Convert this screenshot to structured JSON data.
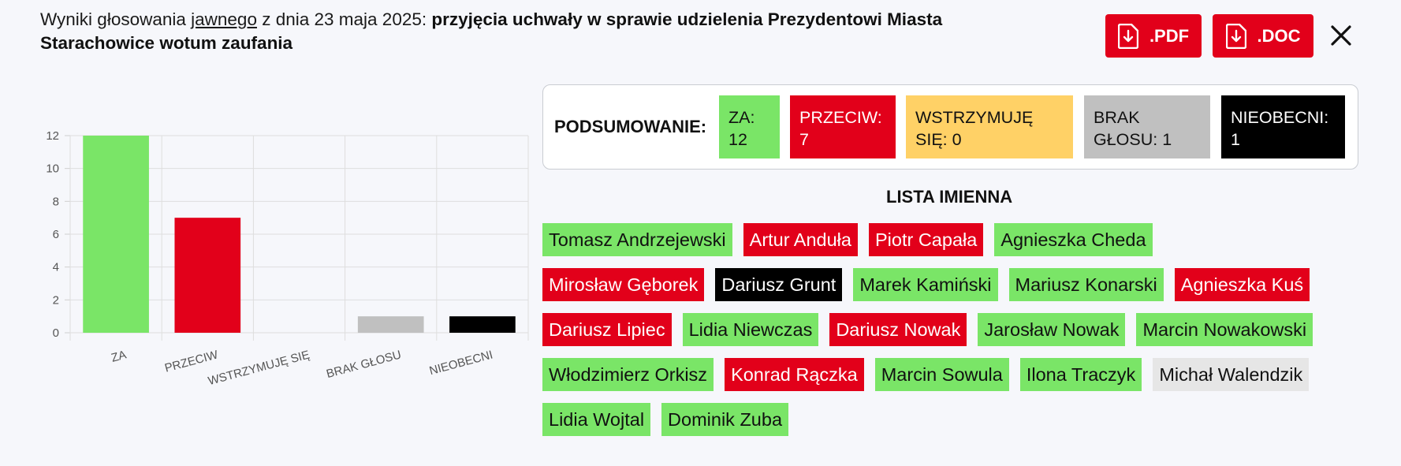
{
  "header": {
    "prefix": "Wyniki głosowania ",
    "vote_type": "jawnego",
    "date_text": " z dnia 23 maja 2025: ",
    "subject": "przyjęcia uchwały w sprawie udzielenia Prezydentowi Miasta Starachowice wotum zaufania"
  },
  "buttons": {
    "pdf_label": ".PDF",
    "doc_label": ".DOC"
  },
  "colors": {
    "za": "#7ae567",
    "przeciw": "#e2001a",
    "wstrzymuje": "#ffd166",
    "brak": "#c0c0c0",
    "nieobecni": "#000000",
    "accent": "#e2001a"
  },
  "chart_data": {
    "type": "bar",
    "categories": [
      "ZA",
      "PRZECIW",
      "WSTRZYMUJĘ SIĘ",
      "BRAK GŁOSU",
      "NIEOBECNI"
    ],
    "values": [
      12,
      7,
      0,
      1,
      1
    ],
    "colors": [
      "#7ae567",
      "#e2001a",
      "#ffd166",
      "#c0c0c0",
      "#000000"
    ],
    "ylim": [
      0,
      12
    ],
    "yticks": [
      0,
      2,
      4,
      6,
      8,
      10,
      12
    ],
    "grid": true,
    "title": "",
    "xlabel": "",
    "ylabel": ""
  },
  "summary": {
    "label": "PODSUMOWANIE:",
    "za": {
      "label": "ZA:",
      "value": "12"
    },
    "przeciw": {
      "label": "PRZECIW:",
      "value": "7"
    },
    "wstrzymuje": {
      "label": "WSTRZYMUJĘ SIĘ:",
      "value": "0"
    },
    "brak": {
      "label": "BRAK GŁOSU:",
      "value": "1"
    },
    "nieobecni": {
      "label": "NIEOBECNI:",
      "value": "1"
    }
  },
  "list_title": "LISTA IMIENNA",
  "names": [
    [
      {
        "name": "Tomasz Andrzejewski",
        "vote": "za"
      },
      {
        "name": "Artur Anduła",
        "vote": "przeciw"
      },
      {
        "name": "Piotr Capała",
        "vote": "przeciw"
      },
      {
        "name": "Agnieszka Cheda",
        "vote": "za"
      }
    ],
    [
      {
        "name": "Mirosław Gęborek",
        "vote": "przeciw"
      },
      {
        "name": "Dariusz Grunt",
        "vote": "nieobecni"
      },
      {
        "name": "Marek Kamiński",
        "vote": "za"
      },
      {
        "name": "Mariusz Konarski",
        "vote": "za"
      },
      {
        "name": "Agnieszka Kuś",
        "vote": "przeciw"
      }
    ],
    [
      {
        "name": "Dariusz Lipiec",
        "vote": "przeciw"
      },
      {
        "name": "Lidia Niewczas",
        "vote": "za"
      },
      {
        "name": "Dariusz Nowak",
        "vote": "przeciw"
      },
      {
        "name": "Jarosław Nowak",
        "vote": "za"
      },
      {
        "name": "Marcin Nowakowski",
        "vote": "za"
      }
    ],
    [
      {
        "name": "Włodzimierz Orkisz",
        "vote": "za"
      },
      {
        "name": "Konrad Rączka",
        "vote": "przeciw"
      },
      {
        "name": "Marcin Sowula",
        "vote": "za"
      },
      {
        "name": "Ilona Traczyk",
        "vote": "za"
      },
      {
        "name": "Michał Walendzik",
        "vote": "brak"
      }
    ],
    [
      {
        "name": "Lidia Wojtal",
        "vote": "za"
      },
      {
        "name": "Dominik Zuba",
        "vote": "za"
      }
    ]
  ]
}
